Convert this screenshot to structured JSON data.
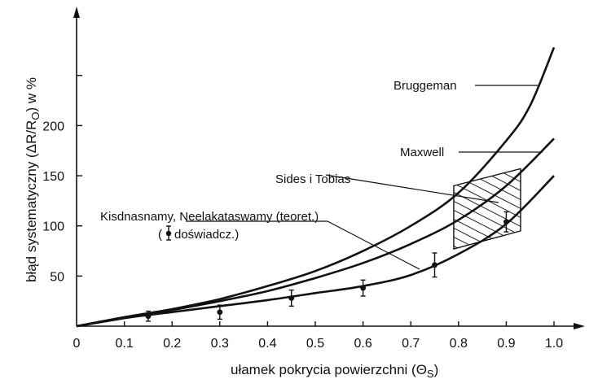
{
  "chart_data": {
    "type": "line",
    "xlabel": "ułamek pokrycia powierzchni (Θ",
    "xlabel_sub": "S",
    "xlabel_close": ")",
    "ylabel": "błąd systematyczny (ΔR/R",
    "ylabel_sub": "O",
    "ylabel_close": ") w %",
    "xlim": [
      0,
      1.05
    ],
    "ylim": [
      0,
      260
    ],
    "x_ticks": [
      0,
      0.1,
      0.2,
      0.3,
      0.4,
      0.5,
      0.6,
      0.7,
      0.8,
      0.9,
      1.0
    ],
    "x_tick_labels": [
      "0",
      "0.1",
      "0.2",
      "0.3",
      "0.4",
      "0.5",
      "0.6",
      "0.7",
      "0.8",
      "0.9",
      "1.0"
    ],
    "y_ticks": [
      50,
      100,
      150,
      200,
      250
    ],
    "y_tick_labels": [
      "50",
      "100",
      "150",
      "200",
      ""
    ],
    "grid": false,
    "series": [
      {
        "name": "Bruggeman",
        "x": [
          0,
          0.1,
          0.2,
          0.3,
          0.4,
          0.5,
          0.6,
          0.7,
          0.8,
          0.9,
          0.95,
          1.0
        ],
        "y": [
          0,
          9,
          17,
          27,
          40,
          55,
          75,
          100,
          133,
          185,
          220,
          278
        ]
      },
      {
        "name": "Maxwell",
        "x": [
          0,
          0.1,
          0.2,
          0.3,
          0.4,
          0.5,
          0.6,
          0.7,
          0.8,
          0.9,
          1.0
        ],
        "y": [
          0,
          8,
          16,
          25,
          35,
          48,
          63,
          82,
          106,
          140,
          187
        ]
      },
      {
        "name": "Kisdnasnamy, Neelakataswamy (teoret.)",
        "x": [
          0,
          0.1,
          0.2,
          0.3,
          0.4,
          0.5,
          0.6,
          0.7,
          0.8,
          0.9,
          1.0
        ],
        "y": [
          0,
          8,
          14,
          20,
          26,
          33,
          40,
          51,
          72,
          102,
          150
        ]
      }
    ],
    "points": {
      "name": "doświadcz.",
      "x": [
        0.15,
        0.3,
        0.45,
        0.6,
        0.75,
        0.9
      ],
      "y": [
        10,
        14,
        28,
        38,
        61,
        104
      ],
      "err": [
        5,
        7,
        8,
        8,
        12,
        10
      ]
    },
    "region": {
      "name": "Sides i Tobias",
      "x": [
        0.79,
        0.79,
        0.93,
        0.93
      ],
      "y": [
        77,
        140,
        157,
        95
      ]
    },
    "labels": {
      "bruggeman": "Bruggeman",
      "maxwell": "Maxwell",
      "sides": "Sides i Tobias",
      "kisd": "Kisdnasnamy, Neelakataswamy (teoret.)",
      "exp_open": "(",
      "exp_close": "doświadcz.)"
    }
  }
}
